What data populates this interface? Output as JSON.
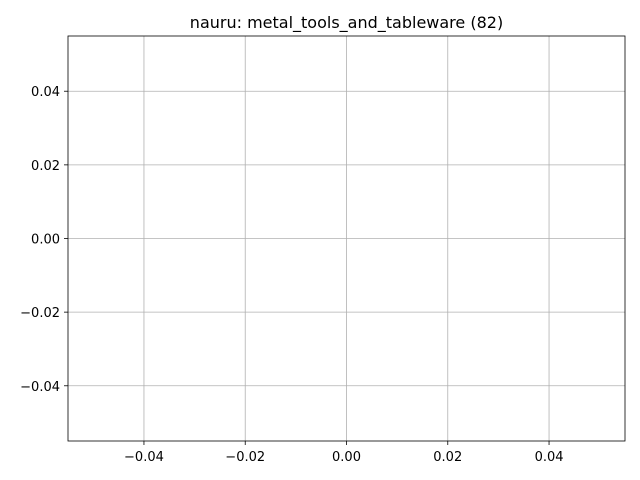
{
  "chart_data": {
    "type": "scatter",
    "title": "nauru: metal_tools_and_tableware (82)",
    "xlabel": "",
    "ylabel": "",
    "xlim": [
      -0.055,
      0.055
    ],
    "ylim": [
      -0.055,
      0.055
    ],
    "x_ticks": [
      -0.04,
      -0.02,
      0.0,
      0.02,
      0.04
    ],
    "y_ticks": [
      -0.04,
      -0.02,
      0.0,
      0.02,
      0.04
    ],
    "x_tick_labels": [
      "−0.04",
      "−0.02",
      "0.00",
      "0.02",
      "0.04"
    ],
    "y_tick_labels": [
      "−0.04",
      "−0.02",
      "0.00",
      "0.02",
      "0.04"
    ],
    "grid": true,
    "series": [
      {
        "x": [],
        "y": []
      }
    ]
  },
  "colors": {
    "grid": "#b0b0b0",
    "axes": "#000000",
    "background": "#ffffff"
  }
}
